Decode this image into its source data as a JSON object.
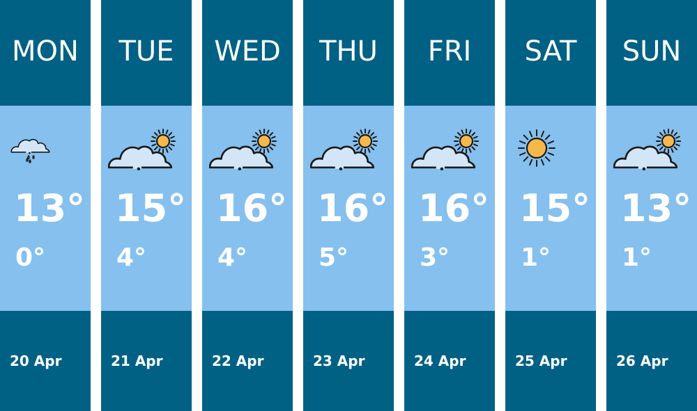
{
  "colors": {
    "header": "#006185",
    "body": "#85c0ee",
    "sun": "#f7b84b",
    "cloud": "#d3e6f7"
  },
  "days": [
    {
      "day": "MON",
      "icon": "rain-cloud-icon",
      "high": "13°",
      "low": "0°",
      "date": "20 Apr"
    },
    {
      "day": "TUE",
      "icon": "partly-cloudy-icon",
      "high": "15°",
      "low": "4°",
      "date": "21 Apr"
    },
    {
      "day": "WED",
      "icon": "partly-cloudy-icon",
      "high": "16°",
      "low": "4°",
      "date": "22 Apr"
    },
    {
      "day": "THU",
      "icon": "partly-cloudy-icon",
      "high": "16°",
      "low": "5°",
      "date": "23 Apr"
    },
    {
      "day": "FRI",
      "icon": "partly-cloudy-icon",
      "high": "16°",
      "low": "3°",
      "date": "24 Apr"
    },
    {
      "day": "SAT",
      "icon": "sun-icon",
      "high": "15°",
      "low": "1°",
      "date": "25 Apr"
    },
    {
      "day": "SUN",
      "icon": "partly-cloudy-icon",
      "high": "13°",
      "low": "1°",
      "date": "26 Apr"
    }
  ]
}
